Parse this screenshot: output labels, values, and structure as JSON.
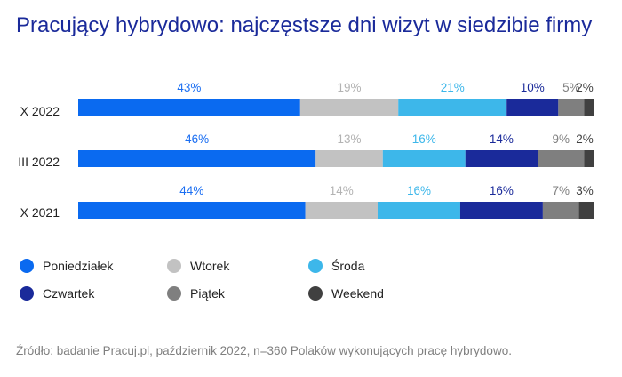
{
  "chart_data": {
    "type": "bar",
    "orientation": "horizontal",
    "stacked": true,
    "title": "Pracujący hybrydowo: najczęstsze dni wizyt w siedzibie firmy",
    "categories": [
      "X 2022",
      "III 2022",
      "X 2021"
    ],
    "series": [
      {
        "name": "Poniedziałek",
        "color": "#0a6af0",
        "values": [
          43,
          46,
          44
        ],
        "labels": [
          "43%",
          "46%",
          "44%"
        ]
      },
      {
        "name": "Wtorek",
        "color": "#c2c2c2",
        "values": [
          19,
          13,
          14
        ],
        "labels": [
          "19%",
          "13%",
          "14%"
        ]
      },
      {
        "name": "Środa",
        "color": "#3db7ea",
        "values": [
          21,
          16,
          16
        ],
        "labels": [
          "21%",
          "16%",
          "16%"
        ]
      },
      {
        "name": "Czwartek",
        "color": "#1a2a9a",
        "values": [
          10,
          14,
          16
        ],
        "labels": [
          "10%",
          "14%",
          "16%"
        ]
      },
      {
        "name": "Piątek",
        "color": "#7f7f7f",
        "values": [
          5,
          9,
          7
        ],
        "labels": [
          "5%",
          "9%",
          "7%"
        ]
      },
      {
        "name": "Weekend",
        "color": "#404040",
        "values": [
          2,
          2,
          3
        ],
        "labels": [
          "2%",
          "2%",
          "3%"
        ]
      }
    ],
    "label_colors": [
      "#1a6ef2",
      "#b3b3b3",
      "#3db7ea",
      "#1a2a9a",
      "#7f7f7f",
      "#404040"
    ],
    "legend_position": "bottom-left",
    "grid": false,
    "source": "Źródło: badanie Pracuj.pl, październik 2022, n=360 Polaków wykonujących pracę hybrydowo."
  }
}
